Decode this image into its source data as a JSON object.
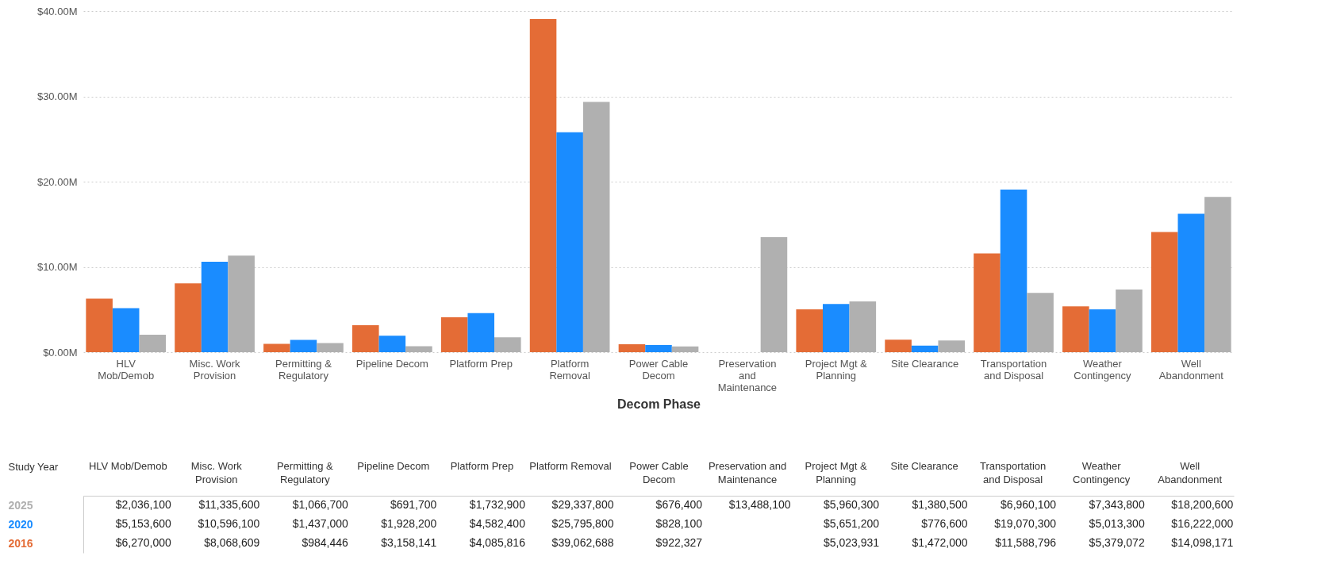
{
  "chart_data": {
    "type": "bar",
    "xlabel": "Decom Phase",
    "legend_title": "Study Year",
    "categories": [
      "HLV Mob/Demob",
      "Misc. Work Provision",
      "Permitting & Regulatory",
      "Pipeline Decom",
      "Platform Prep",
      "Platform Removal",
      "Power Cable Decom",
      "Preservation and Maintenance",
      "Project Mgt & Planning",
      "Site Clearance",
      "Transportation and Disposal",
      "Weather Contingency",
      "Well Abandonment"
    ],
    "series": [
      {
        "name": "2016",
        "color": "#e46c36",
        "values": [
          6270000,
          8068609,
          984446,
          3158141,
          4085816,
          39062688,
          922327,
          null,
          5023931,
          1472000,
          11588796,
          5379072,
          14098171
        ],
        "value_labels": [
          "$6,270,000",
          "$8,068,609",
          "$984,446",
          "$3,158,141",
          "$4,085,816",
          "$39,062,688",
          "$922,327",
          null,
          "$5,023,931",
          "$1,472,000",
          "$11,588,796",
          "$5,379,072",
          "$14,098,171"
        ]
      },
      {
        "name": "2020",
        "color": "#1a8cff",
        "values": [
          5153600,
          10596100,
          1437000,
          1928200,
          4582400,
          25795800,
          828100,
          null,
          5651200,
          776600,
          19070300,
          5013300,
          16222000
        ],
        "value_labels": [
          "$5,153,600",
          "$10,596,100",
          "$1,437,000",
          "$1,928,200",
          "$4,582,400",
          "$25,795,800",
          "$828,100",
          null,
          "$5,651,200",
          "$776,600",
          "$19,070,300",
          "$5,013,300",
          "$16,222,000"
        ]
      },
      {
        "name": "2025",
        "color": "#b0b0b0",
        "values": [
          2036100,
          11335600,
          1066700,
          691700,
          1732900,
          29337800,
          676400,
          13488100,
          5960300,
          1380500,
          6960100,
          7343800,
          18200600
        ],
        "value_labels": [
          "$2,036,100",
          "$11,335,600",
          "$1,066,700",
          "$691,700",
          "$1,732,900",
          "$29,337,800",
          "$676,400",
          "$13,488,100",
          "$5,960,300",
          "$1,380,500",
          "$6,960,100",
          "$7,343,800",
          "$18,200,600"
        ]
      }
    ],
    "ylim": [
      0,
      40000000
    ],
    "yticks": [
      {
        "value": 0,
        "label": "$0.00M"
      },
      {
        "value": 10000000,
        "label": "$10.00M"
      },
      {
        "value": 20000000,
        "label": "$20.00M"
      },
      {
        "value": 30000000,
        "label": "$30.00M"
      },
      {
        "value": 40000000,
        "label": "$40.00M"
      }
    ],
    "grid": "y"
  }
}
